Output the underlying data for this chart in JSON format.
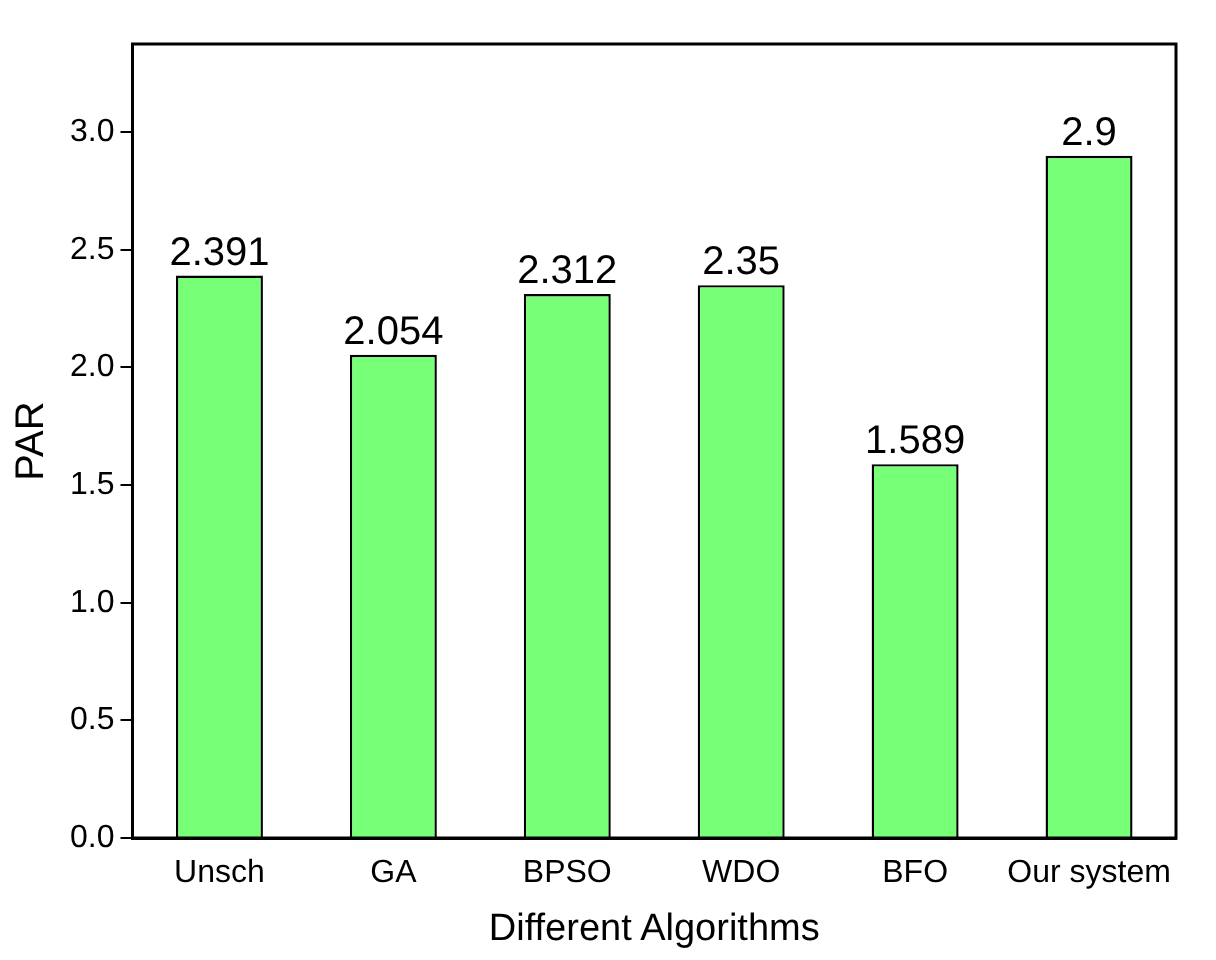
{
  "chart_data": {
    "type": "bar",
    "xlabel": "Different Algorithms",
    "ylabel": "PAR",
    "categories": [
      "Unsch",
      "GA",
      "BPSO",
      "WDO",
      "BFO",
      "Our system"
    ],
    "values": [
      2.391,
      2.054,
      2.312,
      2.35,
      1.589,
      2.9
    ],
    "color": "#77ff77",
    "data_labels": true,
    "grid": false,
    "legend": false,
    "ylim": [
      0,
      3.375
    ],
    "yticks": [
      {
        "value": 0,
        "label": "0.0"
      },
      {
        "value": 0.5,
        "label": "0.5"
      },
      {
        "value": 1,
        "label": "1.0"
      },
      {
        "value": 1.5,
        "label": "1.5"
      },
      {
        "value": 2,
        "label": "2.0"
      },
      {
        "value": 2.5,
        "label": "2.5"
      },
      {
        "value": 3,
        "label": "3.0"
      }
    ]
  }
}
